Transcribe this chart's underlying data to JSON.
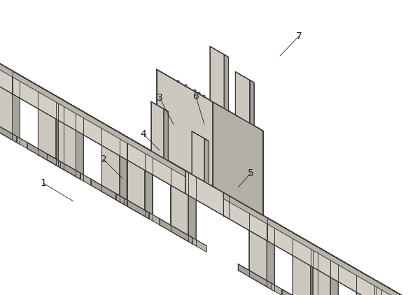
{
  "background_color": "#ffffff",
  "line_color": "#3a3a3a",
  "line_width": 0.7,
  "fc_light": "#e8e4dc",
  "fc_mid": "#d4cfc6",
  "fc_dark": "#b8b4aa",
  "fc_roller_top": "#dcd8d0",
  "fc_roller_shadow": "#a8a49c",
  "fc_heater_top": "#dedad4",
  "fc_heater_front": "#ccc8c0",
  "fc_heater_side": "#b4b0a8",
  "fc_leg": "#ccc8c0",
  "fc_leg_dark": "#a8a49c",
  "figsize": [
    5.93,
    4.22
  ],
  "dpi": 100,
  "label_fs": 10,
  "label_color": "#222222"
}
